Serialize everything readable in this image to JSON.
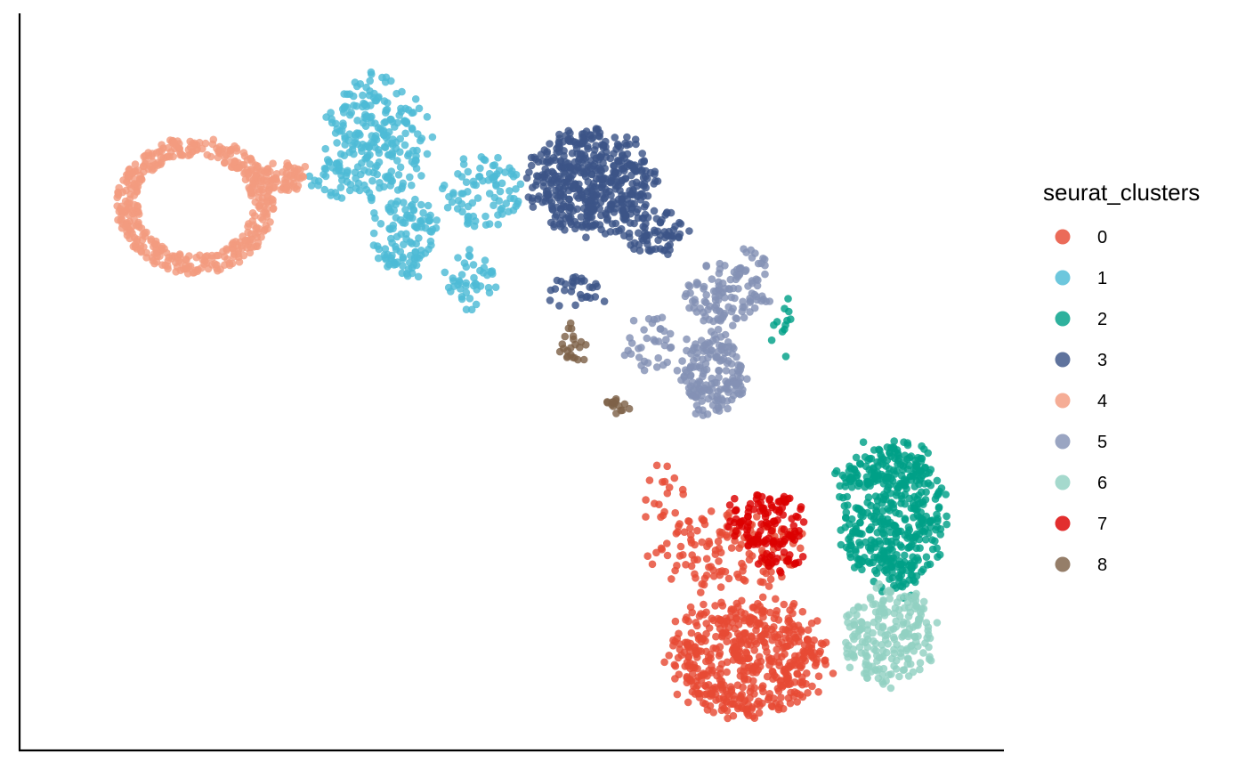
{
  "chart_data": {
    "type": "scatter",
    "title": "",
    "xlabel": "",
    "ylabel": "",
    "xlim": [
      0,
      100
    ],
    "ylim": [
      0,
      100
    ],
    "grid": false,
    "axis_ticks": false,
    "legend": {
      "title": "seurat_clusters",
      "placement": "right"
    },
    "series": [
      {
        "name": "0",
        "color": "#E64B35",
        "blobs": [
          {
            "cx": 75.5,
            "cy": 9.5,
            "rx": 8.5,
            "ry": 8.5,
            "n": 520
          },
          {
            "cx": 73.0,
            "cy": 25.0,
            "rx": 8.0,
            "ry": 5.5,
            "n": 140
          },
          {
            "cx": 66.0,
            "cy": 33.5,
            "rx": 2.5,
            "ry": 4.5,
            "n": 18
          }
        ]
      },
      {
        "name": "1",
        "color": "#4DBBD5",
        "blobs": [
          {
            "cx": 35.5,
            "cy": 85.0,
            "rx": 5.5,
            "ry": 9.0,
            "n": 230
          },
          {
            "cx": 38.5,
            "cy": 71.0,
            "rx": 3.5,
            "ry": 6.0,
            "n": 110
          },
          {
            "cx": 45.5,
            "cy": 64.5,
            "rx": 2.8,
            "ry": 4.0,
            "n": 45
          },
          {
            "cx": 47.0,
            "cy": 77.5,
            "rx": 4.5,
            "ry": 5.5,
            "n": 85
          },
          {
            "cx": 30.5,
            "cy": 79.0,
            "rx": 2.2,
            "ry": 2.8,
            "n": 25
          }
        ]
      },
      {
        "name": "2",
        "color": "#00A087",
        "blobs": [
          {
            "cx": 91.0,
            "cy": 30.5,
            "rx": 5.5,
            "ry": 11.0,
            "n": 470
          },
          {
            "cx": 79.5,
            "cy": 56.0,
            "rx": 1.5,
            "ry": 6.0,
            "n": 12
          },
          {
            "cx": 85.5,
            "cy": 36.0,
            "rx": 1.5,
            "ry": 2.0,
            "n": 10
          }
        ]
      },
      {
        "name": "3",
        "color": "#3C5488",
        "blobs": [
          {
            "cx": 58.5,
            "cy": 79.0,
            "rx": 6.5,
            "ry": 7.5,
            "n": 470
          },
          {
            "cx": 65.5,
            "cy": 71.5,
            "rx": 4.0,
            "ry": 3.0,
            "n": 70
          },
          {
            "cx": 57.0,
            "cy": 63.0,
            "rx": 3.5,
            "ry": 2.5,
            "n": 30
          }
        ]
      },
      {
        "name": "4",
        "color": "#F39B7F",
        "blobs": [
          {
            "cx": 16.0,
            "cy": 75.5,
            "rx": 8.5,
            "ry": 10.0,
            "n": 430,
            "ring": true
          },
          {
            "cx": 25.5,
            "cy": 79.5,
            "rx": 3.0,
            "ry": 2.0,
            "n": 60
          }
        ]
      },
      {
        "name": "5",
        "color": "#8491B4",
        "blobs": [
          {
            "cx": 71.5,
            "cy": 51.0,
            "rx": 3.5,
            "ry": 6.0,
            "n": 170
          },
          {
            "cx": 73.0,
            "cy": 62.5,
            "rx": 4.5,
            "ry": 4.5,
            "n": 110
          },
          {
            "cx": 65.0,
            "cy": 55.0,
            "rx": 3.0,
            "ry": 5.0,
            "n": 35
          },
          {
            "cx": 76.0,
            "cy": 67.0,
            "rx": 1.5,
            "ry": 3.0,
            "n": 12
          }
        ]
      },
      {
        "name": "6",
        "color": "#91D1C2",
        "blobs": [
          {
            "cx": 90.5,
            "cy": 13.0,
            "rx": 5.0,
            "ry": 7.0,
            "n": 210
          }
        ]
      },
      {
        "name": "7",
        "color": "#DC0000",
        "blobs": [
          {
            "cx": 77.0,
            "cy": 29.5,
            "rx": 4.5,
            "ry": 4.0,
            "n": 110
          },
          {
            "cx": 79.0,
            "cy": 24.0,
            "rx": 2.5,
            "ry": 2.5,
            "n": 25
          }
        ]
      },
      {
        "name": "8",
        "color": "#7E6148",
        "blobs": [
          {
            "cx": 56.5,
            "cy": 55.0,
            "rx": 1.5,
            "ry": 4.0,
            "n": 22
          },
          {
            "cx": 61.0,
            "cy": 46.5,
            "rx": 1.6,
            "ry": 1.6,
            "n": 15
          }
        ]
      }
    ]
  }
}
